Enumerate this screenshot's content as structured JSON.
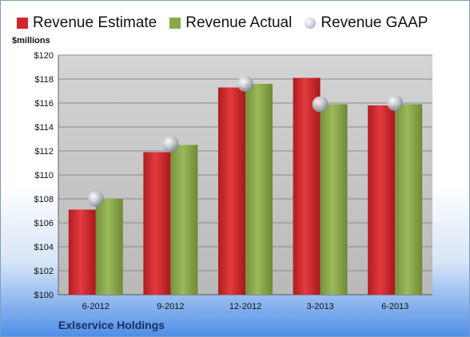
{
  "chart_data": {
    "type": "bar",
    "title": "",
    "ylabel": "$millions",
    "xlabel": "",
    "categories": [
      "6-2012",
      "9-2012",
      "12-2012",
      "3-2013",
      "6-2013"
    ],
    "series": [
      {
        "name": "Revenue Estimate",
        "kind": "bar",
        "color": "#d0262b",
        "values": [
          107.1,
          111.9,
          117.3,
          118.1,
          115.8
        ]
      },
      {
        "name": "Revenue Actual",
        "kind": "bar",
        "color": "#8aa84a",
        "values": [
          108.0,
          112.5,
          117.6,
          115.9,
          115.9
        ]
      },
      {
        "name": "Revenue GAAP",
        "kind": "marker",
        "color": "#b9c0cc",
        "values": [
          108.0,
          112.6,
          117.6,
          115.9,
          116.0
        ]
      }
    ],
    "ylim": [
      100,
      120
    ],
    "yticks": [
      "$100",
      "$102",
      "$104",
      "$106",
      "$108",
      "$110",
      "$112",
      "$114",
      "$116",
      "$118",
      "$120"
    ],
    "grid": true,
    "legend_position": "top"
  },
  "company": "Exlservice Holdings"
}
